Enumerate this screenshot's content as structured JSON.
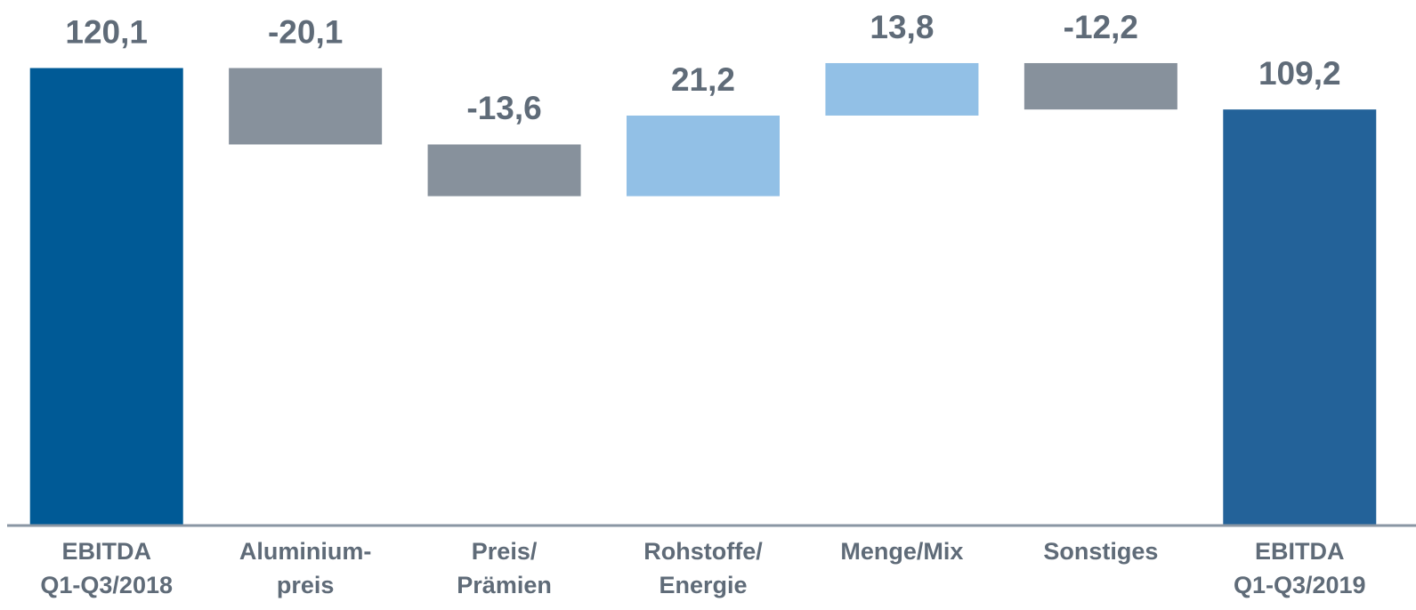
{
  "chart_data": {
    "type": "waterfall",
    "categories": [
      [
        "EBITDA",
        "Q1-Q3/2018"
      ],
      [
        "Aluminium-",
        "preis"
      ],
      [
        "Preis/",
        "Prämien"
      ],
      [
        "Rohstoffe/",
        "Energie"
      ],
      [
        "Menge/Mix"
      ],
      [
        "Sonstiges"
      ],
      [
        "EBITDA",
        "Q1-Q3/2019"
      ]
    ],
    "values": [
      120.1,
      -20.1,
      -13.6,
      21.2,
      13.8,
      -12.2,
      109.2
    ],
    "value_labels": [
      "120,1",
      "-20,1",
      "-13,6",
      "21,2",
      "13,8",
      "-12,2",
      "109,2"
    ],
    "is_total": [
      true,
      false,
      false,
      false,
      false,
      false,
      true
    ],
    "colors": [
      "#005a96",
      "#87919c",
      "#87919c",
      "#92c0e6",
      "#92c0e6",
      "#87919c",
      "#236299"
    ],
    "ylim": [
      0,
      138
    ]
  }
}
